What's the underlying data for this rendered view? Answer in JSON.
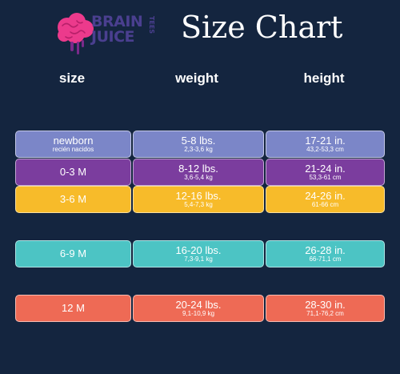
{
  "logo": {
    "line1": "BRAIN",
    "line2": "JUICE",
    "side": "TEES"
  },
  "title": "Size Chart",
  "headers": {
    "size": "size",
    "weight": "weight",
    "height": "height"
  },
  "rows": [
    {
      "size": "newborn",
      "size_sub": "recién nacidos",
      "weight": "5-8 lbs.",
      "weight_sub": "2,3-3,6 kg",
      "height": "17-21 in.",
      "height_sub": "43,2-53,3 cm",
      "color": "#7b86c8"
    },
    {
      "size": "0-3 M",
      "size_sub": "",
      "weight": "8-12 lbs.",
      "weight_sub": "3,6-5,4 kg",
      "height": "21-24 in.",
      "height_sub": "53,3-61 cm",
      "color": "#7b3d9e"
    },
    {
      "size": "3-6 M",
      "size_sub": "",
      "weight": "12-16 lbs.",
      "weight_sub": "5,4-7,3 kg",
      "height": "24-26 in.",
      "height_sub": "61-66 cm",
      "color": "#f7bb2a"
    },
    {
      "size": "6-9 M",
      "size_sub": "",
      "weight": "16-20 lbs.",
      "weight_sub": "7,3-9,1 kg",
      "height": "26-28 in.",
      "height_sub": "66-71,1 cm",
      "color": "#4cc4c4"
    },
    {
      "size": "12 M",
      "size_sub": "",
      "weight": "20-24 lbs.",
      "weight_sub": "9,1-10,9 kg",
      "height": "28-30 in.",
      "height_sub": "71,1-76,2 cm",
      "color": "#ee6a55"
    }
  ]
}
